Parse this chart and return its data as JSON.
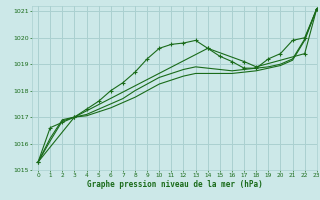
{
  "title": "Graphe pression niveau de la mer (hPa)",
  "bg_color": "#cce8e8",
  "grid_color": "#aad0d0",
  "line_color": "#1a6b1a",
  "xlim": [
    -0.5,
    23
  ],
  "ylim": [
    1015,
    1021.2
  ],
  "xticks": [
    0,
    1,
    2,
    3,
    4,
    5,
    6,
    7,
    8,
    9,
    10,
    11,
    12,
    13,
    14,
    15,
    16,
    17,
    18,
    19,
    20,
    21,
    22,
    23
  ],
  "yticks": [
    1015,
    1016,
    1017,
    1018,
    1019,
    1020,
    1021
  ],
  "series": [
    {
      "x": [
        0,
        1,
        2,
        3,
        4,
        5,
        6,
        7,
        8,
        9,
        10,
        11,
        12,
        13,
        14,
        15,
        16,
        17,
        18,
        19,
        20,
        21,
        22,
        23
      ],
      "y": [
        1015.3,
        1016.6,
        1016.8,
        1017.0,
        1017.3,
        1017.6,
        1018.0,
        1018.3,
        1018.7,
        1019.2,
        1019.6,
        1019.75,
        1019.8,
        1019.9,
        1019.6,
        1019.3,
        1019.1,
        1018.85,
        1018.85,
        1019.2,
        1019.4,
        1019.9,
        1020.0,
        1021.1
      ],
      "marker": "+"
    },
    {
      "x": [
        0,
        1,
        2,
        3,
        4,
        5,
        6,
        7,
        8,
        9,
        10,
        11,
        12,
        13,
        14,
        15,
        16,
        17,
        18,
        19,
        20,
        21,
        22,
        23
      ],
      "y": [
        1015.3,
        1016.2,
        1016.9,
        1017.0,
        1017.1,
        1017.3,
        1017.5,
        1017.7,
        1018.0,
        1018.25,
        1018.5,
        1018.65,
        1018.8,
        1018.9,
        1018.85,
        1018.8,
        1018.75,
        1018.8,
        1018.85,
        1018.9,
        1019.0,
        1019.2,
        1019.95,
        1021.1
      ],
      "marker": null
    },
    {
      "x": [
        0,
        1,
        2,
        3,
        4,
        5,
        6,
        7,
        8,
        9,
        10,
        11,
        12,
        13,
        14,
        15,
        16,
        17,
        18,
        19,
        20,
        21,
        22,
        23
      ],
      "y": [
        1015.3,
        1016.1,
        1016.85,
        1017.0,
        1017.05,
        1017.2,
        1017.35,
        1017.55,
        1017.75,
        1018.0,
        1018.25,
        1018.4,
        1018.55,
        1018.65,
        1018.65,
        1018.65,
        1018.65,
        1018.7,
        1018.75,
        1018.85,
        1018.95,
        1019.15,
        1019.9,
        1021.1
      ],
      "marker": null
    },
    {
      "x": [
        0,
        3,
        14,
        17,
        18,
        22,
        23
      ],
      "y": [
        1015.3,
        1017.0,
        1019.6,
        1019.1,
        1018.9,
        1019.4,
        1021.1
      ],
      "marker": "+"
    }
  ]
}
